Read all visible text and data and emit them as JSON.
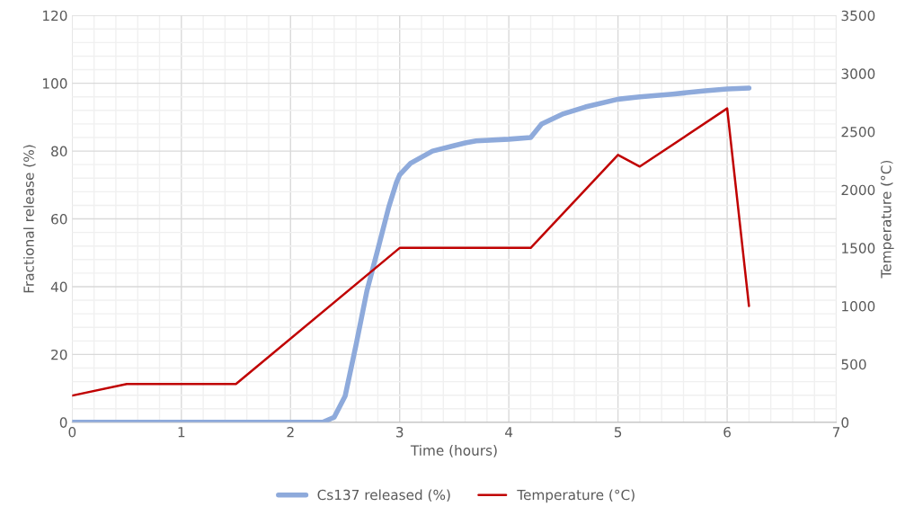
{
  "chart_data": {
    "type": "line",
    "xlabel": "Time (hours)",
    "ylabel": "Fractional release (%)",
    "y2label": "Temperature (°C)",
    "xlim": [
      0,
      7
    ],
    "xticks": [
      0,
      1,
      2,
      3,
      4,
      5,
      6,
      7
    ],
    "ylim": [
      0,
      120
    ],
    "yticks": [
      0,
      20,
      40,
      60,
      80,
      100,
      120
    ],
    "y2lim": [
      0,
      3500
    ],
    "y2ticks": [
      0,
      500,
      1000,
      1500,
      2000,
      2500,
      3000,
      3500
    ],
    "grid": true,
    "legend": "bottom",
    "marker": "none",
    "line_style": "solid",
    "series": [
      {
        "name": "Cs137 released (%)",
        "color": "#8eaadb",
        "x": [
          0,
          1,
          2,
          2.3,
          2.4,
          2.5,
          2.6,
          2.7,
          2.8,
          2.9,
          2.97,
          3.0,
          3.1,
          3.3,
          3.5,
          3.6,
          3.7,
          4.0,
          4.2,
          4.3,
          4.5,
          4.7,
          5.0,
          5.2,
          5.5,
          5.8,
          6.0,
          6.2
        ],
        "values": [
          0,
          0,
          0,
          0.1,
          1.5,
          7.7,
          22.8,
          38.8,
          51,
          63.5,
          70.7,
          73,
          76.4,
          80,
          81.6,
          82.4,
          83,
          83.5,
          84,
          88,
          91,
          93,
          95.3,
          96,
          96.8,
          97.8,
          98.3,
          98.6
        ]
      },
      {
        "name": "Temperature (°C)",
        "color": "#c00000",
        "axis": "y2",
        "x": [
          0,
          0.5,
          1.5,
          3,
          4.2,
          5,
          5.2,
          6,
          6.2
        ],
        "values": [
          230,
          330,
          330,
          1500,
          1500,
          2300,
          2200,
          2700,
          1000
        ]
      }
    ]
  }
}
